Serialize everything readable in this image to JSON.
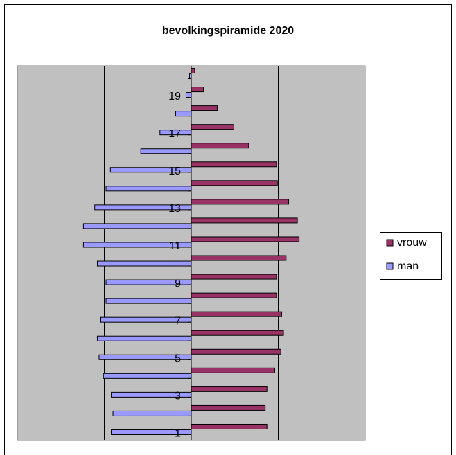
{
  "chart_data": {
    "type": "pyramid",
    "title": "bevolkingspiramide 2020",
    "categories": [
      1,
      null,
      3,
      null,
      5,
      null,
      7,
      null,
      9,
      null,
      11,
      null,
      13,
      null,
      15,
      null,
      17,
      null,
      19,
      null
    ],
    "series": [
      {
        "name": "vrouw",
        "color": "#993366",
        "values": [
          0.87,
          0.85,
          0.87,
          0.96,
          1.03,
          1.06,
          1.04,
          0.98,
          0.98,
          1.09,
          1.24,
          1.22,
          1.12,
          0.99,
          0.98,
          0.66,
          0.49,
          0.3,
          0.14,
          0.04
        ]
      },
      {
        "name": "man",
        "color": "#9999ff",
        "values": [
          -0.92,
          -0.9,
          -0.92,
          -1.01,
          -1.06,
          -1.08,
          -1.04,
          -0.98,
          -0.98,
          -1.08,
          -1.24,
          -1.24,
          -1.11,
          -0.98,
          -0.93,
          -0.58,
          -0.36,
          -0.18,
          -0.06,
          -0.02
        ]
      }
    ],
    "xlim": [
      -2,
      2
    ],
    "xgrid": [
      -1,
      1
    ],
    "plot_color": "#c0c0c0"
  }
}
